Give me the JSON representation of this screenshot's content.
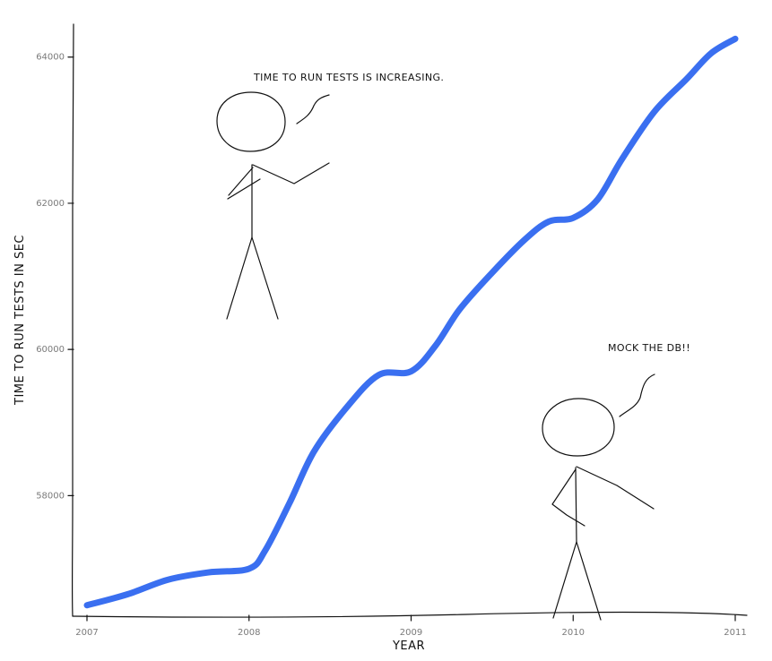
{
  "chart_data": {
    "type": "line",
    "title": "",
    "xlabel": "YEAR",
    "ylabel": "TIME TO RUN TESTS IN SEC",
    "xlim": [
      2007,
      2011
    ],
    "ylim": [
      56350,
      64450
    ],
    "x_ticks": [
      "2007",
      "2008",
      "2009",
      "2010",
      "2011"
    ],
    "y_ticks": [
      "58000",
      "60000",
      "62000",
      "64000"
    ],
    "grid": false,
    "legend": "none",
    "series": [
      {
        "color": "#3a6ff0",
        "x": [
          2007.0,
          2007.25,
          2007.5,
          2007.75,
          2008.0,
          2008.1,
          2008.25,
          2008.4,
          2008.6,
          2008.8,
          2009.0,
          2009.15,
          2009.3,
          2009.5,
          2009.7,
          2009.85,
          2010.0,
          2010.15,
          2010.3,
          2010.5,
          2010.7,
          2010.85,
          2011.0
        ],
        "y": [
          56500,
          56650,
          56850,
          56950,
          57000,
          57250,
          57900,
          58600,
          59200,
          59650,
          59700,
          60050,
          60550,
          61050,
          61500,
          61750,
          61800,
          62050,
          62600,
          63250,
          63700,
          64050,
          64250
        ]
      }
    ]
  },
  "annotations": {
    "top": "TIME TO RUN TESTS IS INCREASING.",
    "bottom": "MOCK THE DB!!"
  }
}
